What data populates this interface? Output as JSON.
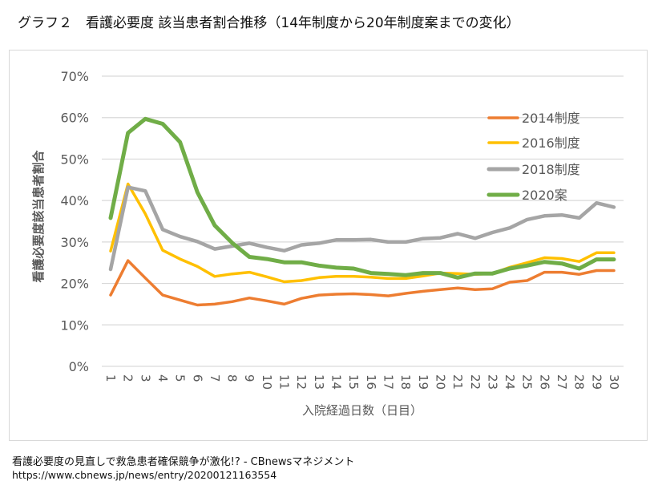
{
  "title": "グラフ２　看護必要度 該当患者割合推移（14年制度から20年制度案までの変化）",
  "source": {
    "line1": "看護必要度の見直しで救急患者確保競争が激化!? - CBnewsマネジメント",
    "line2": "https://www.cbnews.jp/news/entry/20200121163554"
  },
  "chart_data": {
    "type": "line",
    "title": "",
    "xlabel": "入院経過日数（日目）",
    "ylabel": "看護必要度該当患者割合",
    "x": [
      "1",
      "2",
      "3",
      "4",
      "5",
      "6",
      "7",
      "8",
      "9",
      "10",
      "11",
      "12",
      "13",
      "14",
      "15",
      "16",
      "17",
      "18",
      "19",
      "20",
      "21",
      "22",
      "23",
      "24",
      "25",
      "26",
      "27",
      "28",
      "29",
      "30"
    ],
    "ylim": [
      0,
      70
    ],
    "yticks": [
      0,
      10,
      20,
      30,
      40,
      50,
      60,
      70
    ],
    "ytick_labels": [
      "0%",
      "10%",
      "20%",
      "30%",
      "40%",
      "50%",
      "60%",
      "70%"
    ],
    "y_unit": "%",
    "grid": true,
    "legend_position": "top-right",
    "series": [
      {
        "name": "2014制度",
        "color": "#ED7D31",
        "values": [
          17.2,
          25.5,
          21.3,
          17.2,
          16.0,
          14.8,
          15.0,
          15.6,
          16.5,
          15.8,
          15.0,
          16.4,
          17.2,
          17.4,
          17.5,
          17.3,
          17.0,
          17.6,
          18.1,
          18.5,
          18.9,
          18.5,
          18.7,
          20.3,
          20.7,
          22.7,
          22.7,
          22.2,
          23.1,
          23.1
        ]
      },
      {
        "name": "2016制度",
        "color": "#FFC000",
        "values": [
          27.8,
          44.0,
          36.8,
          28.0,
          25.9,
          24.1,
          21.7,
          22.3,
          22.7,
          21.6,
          20.4,
          20.7,
          21.4,
          21.7,
          21.7,
          21.5,
          21.2,
          21.2,
          21.8,
          22.5,
          22.4,
          22.2,
          22.4,
          23.9,
          25.0,
          26.2,
          26.0,
          25.3,
          27.4,
          27.4
        ]
      },
      {
        "name": "2018制度",
        "color": "#A5A5A5",
        "values": [
          23.4,
          43.2,
          42.3,
          33.0,
          31.3,
          30.1,
          28.3,
          29.0,
          29.7,
          28.7,
          27.9,
          29.3,
          29.7,
          30.5,
          30.5,
          30.6,
          30.0,
          30.0,
          30.8,
          31.0,
          32.0,
          30.9,
          32.3,
          33.4,
          35.4,
          36.3,
          36.5,
          35.8,
          39.4,
          38.4
        ]
      },
      {
        "name": "2020案",
        "color": "#70AD47",
        "values": [
          35.8,
          56.3,
          59.7,
          58.5,
          54.1,
          42.0,
          34.0,
          29.8,
          26.4,
          25.9,
          25.1,
          25.1,
          24.3,
          23.8,
          23.6,
          22.5,
          22.3,
          22.0,
          22.5,
          22.5,
          21.4,
          22.4,
          22.4,
          23.6,
          24.3,
          25.2,
          24.8,
          23.6,
          25.8,
          25.8
        ]
      }
    ]
  }
}
